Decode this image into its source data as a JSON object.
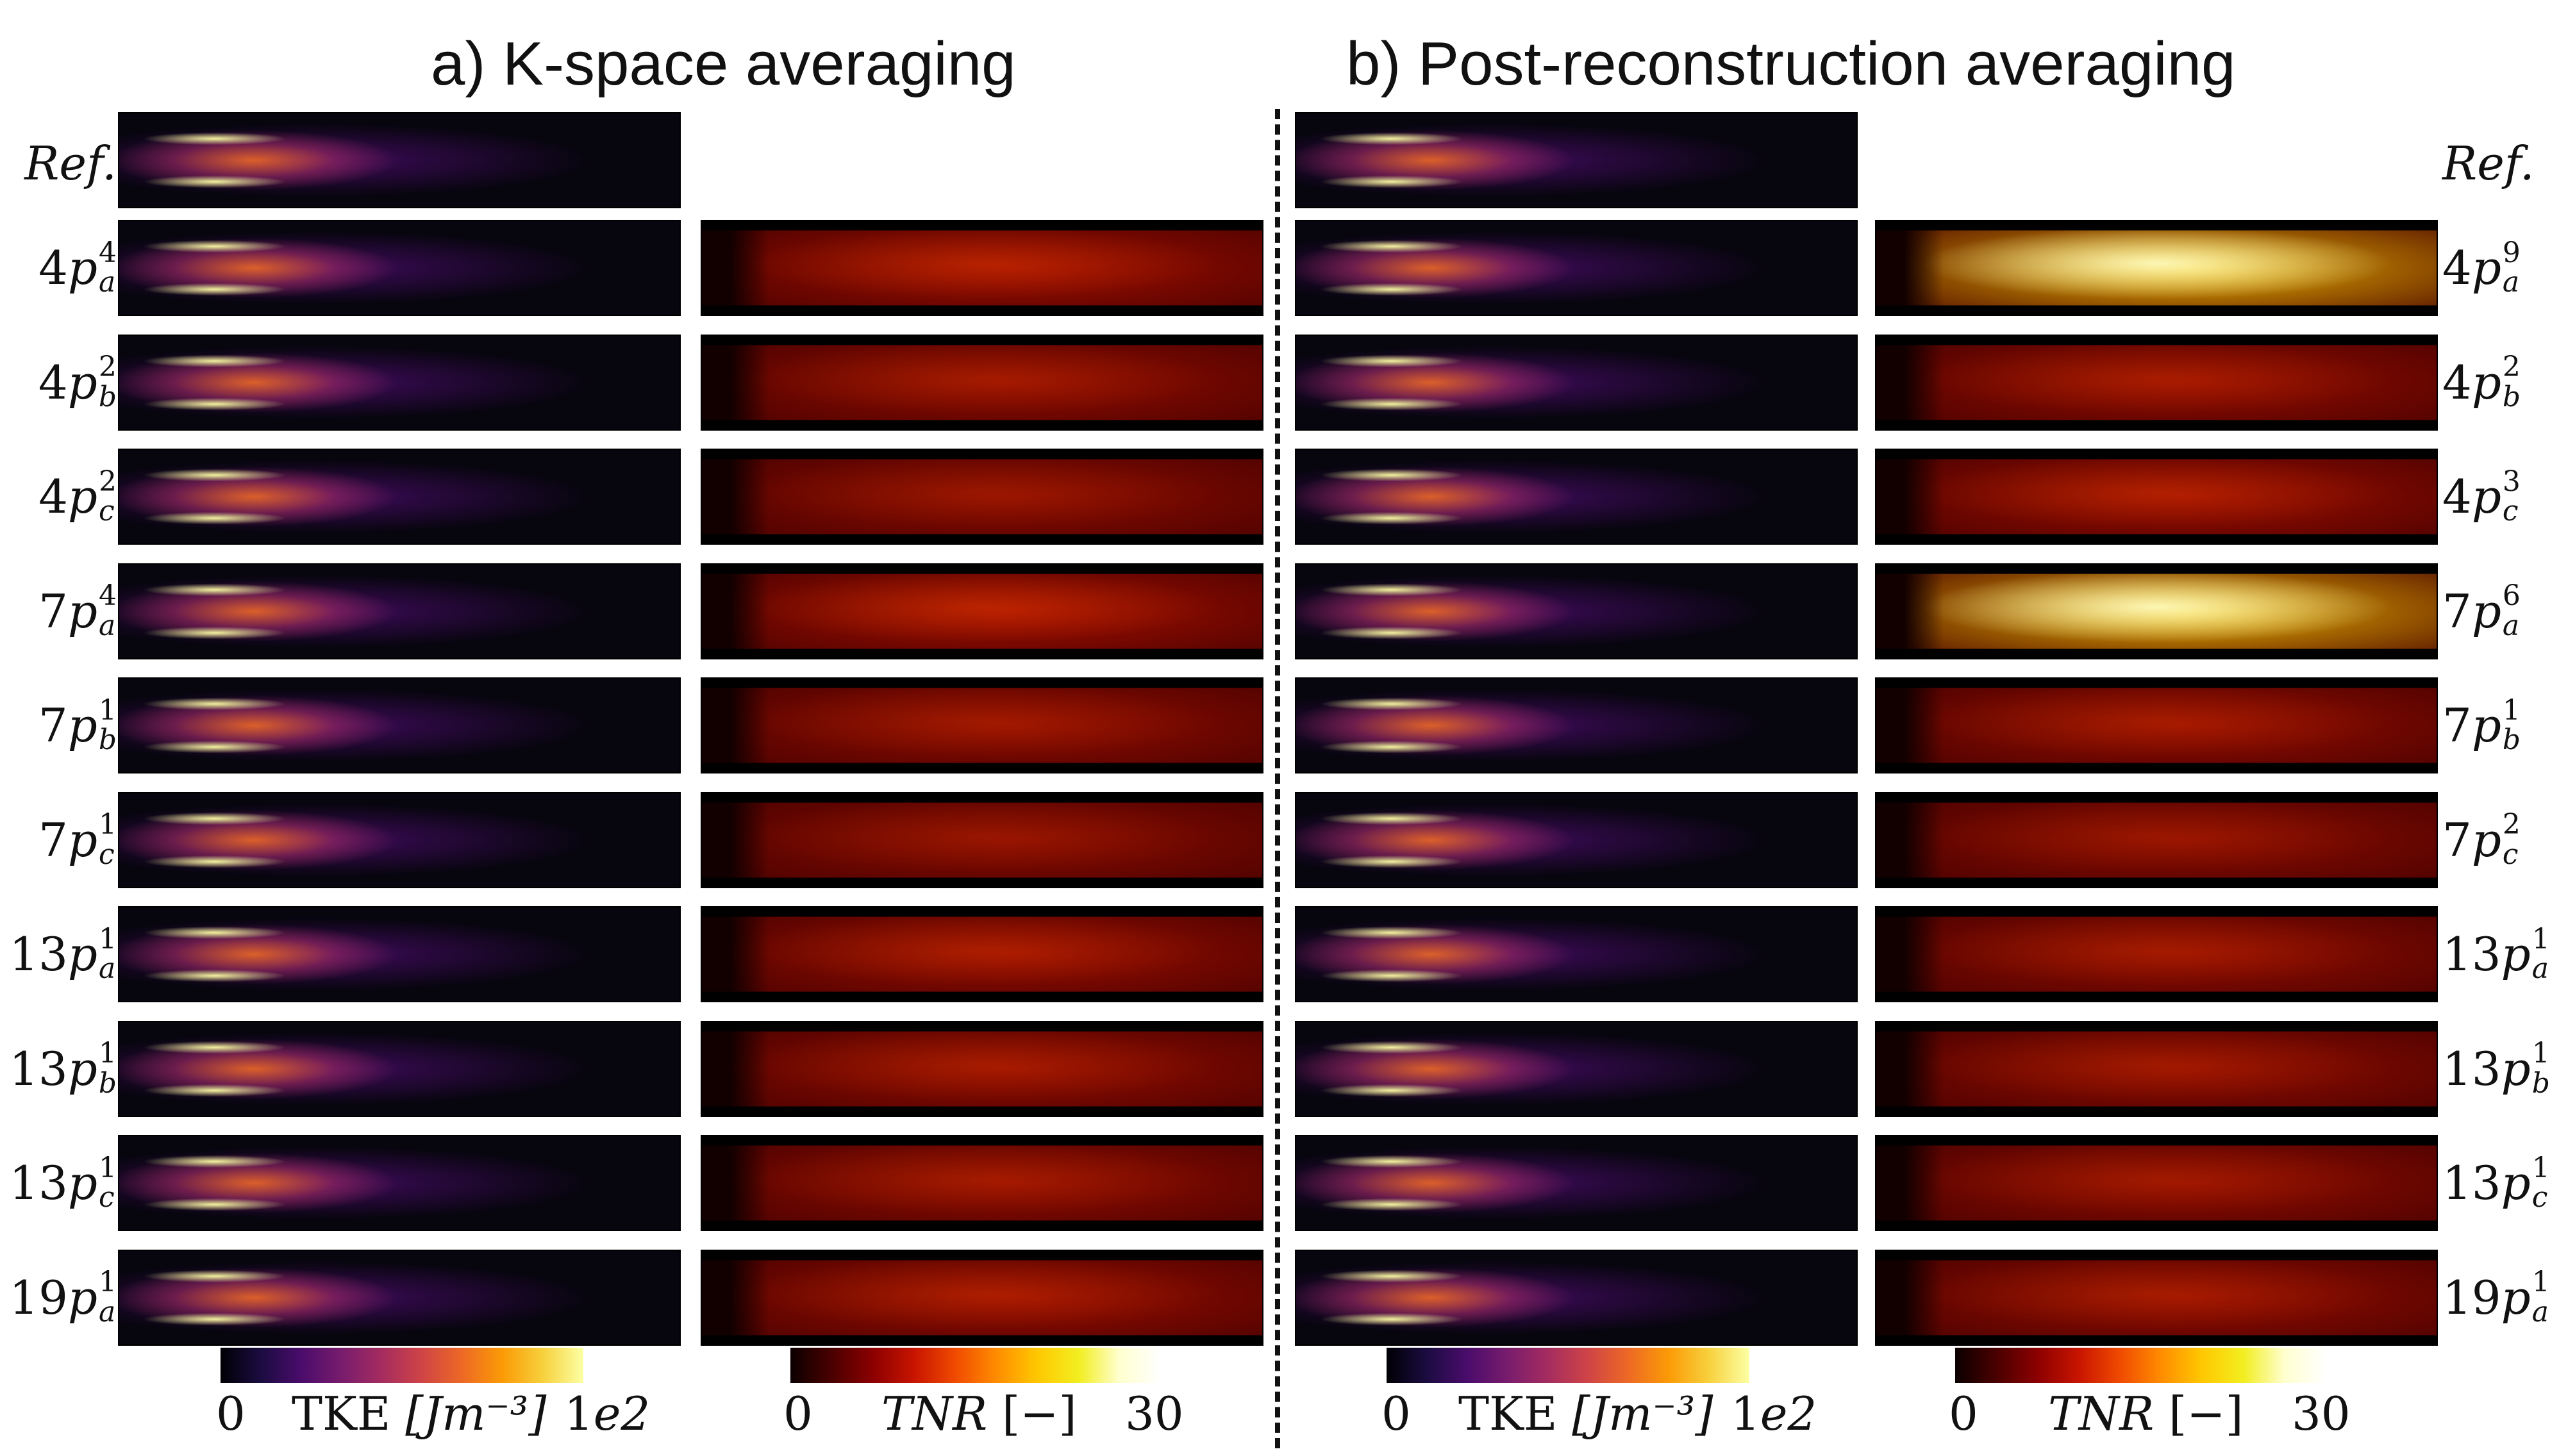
{
  "titles": {
    "a": "a) K-space averaging",
    "b": "b) Post-reconstruction averaging"
  },
  "reference_label": "Ref.",
  "rows_a": [
    {
      "num": "4",
      "sup": "4",
      "sub": "a"
    },
    {
      "num": "4",
      "sup": "2",
      "sub": "b"
    },
    {
      "num": "4",
      "sup": "2",
      "sub": "c"
    },
    {
      "num": "7",
      "sup": "4",
      "sub": "a"
    },
    {
      "num": "7",
      "sup": "1",
      "sub": "b"
    },
    {
      "num": "7",
      "sup": "1",
      "sub": "c"
    },
    {
      "num": "13",
      "sup": "1",
      "sub": "a"
    },
    {
      "num": "13",
      "sup": "1",
      "sub": "b"
    },
    {
      "num": "13",
      "sup": "1",
      "sub": "c"
    },
    {
      "num": "19",
      "sup": "1",
      "sub": "a"
    }
  ],
  "rows_b": [
    {
      "num": "4",
      "sup": "9",
      "sub": "a"
    },
    {
      "num": "4",
      "sup": "2",
      "sub": "b"
    },
    {
      "num": "4",
      "sup": "3",
      "sub": "c"
    },
    {
      "num": "7",
      "sup": "6",
      "sub": "a"
    },
    {
      "num": "7",
      "sup": "1",
      "sub": "b"
    },
    {
      "num": "7",
      "sup": "2",
      "sub": "c"
    },
    {
      "num": "13",
      "sup": "1",
      "sub": "a"
    },
    {
      "num": "13",
      "sup": "1",
      "sub": "b"
    },
    {
      "num": "13",
      "sup": "1",
      "sub": "c"
    },
    {
      "num": "19",
      "sup": "1",
      "sub": "a"
    }
  ],
  "tnr_intensity_a": [
    0.55,
    0.38,
    0.3,
    0.6,
    0.35,
    0.28,
    0.45,
    0.4,
    0.38,
    0.45
  ],
  "tnr_intensity_b": [
    1.0,
    0.42,
    0.5,
    0.95,
    0.4,
    0.3,
    0.38,
    0.35,
    0.35,
    0.4
  ],
  "colorbars": {
    "tke": {
      "min": "0",
      "label_text": "TKE",
      "unit": "[Jm⁻³]",
      "max": "1e2",
      "max_mantissa": "1",
      "max_exp": "e2"
    },
    "tnr": {
      "min": "0",
      "label": "TNR",
      "unit": "[−]",
      "max": "30"
    }
  }
}
